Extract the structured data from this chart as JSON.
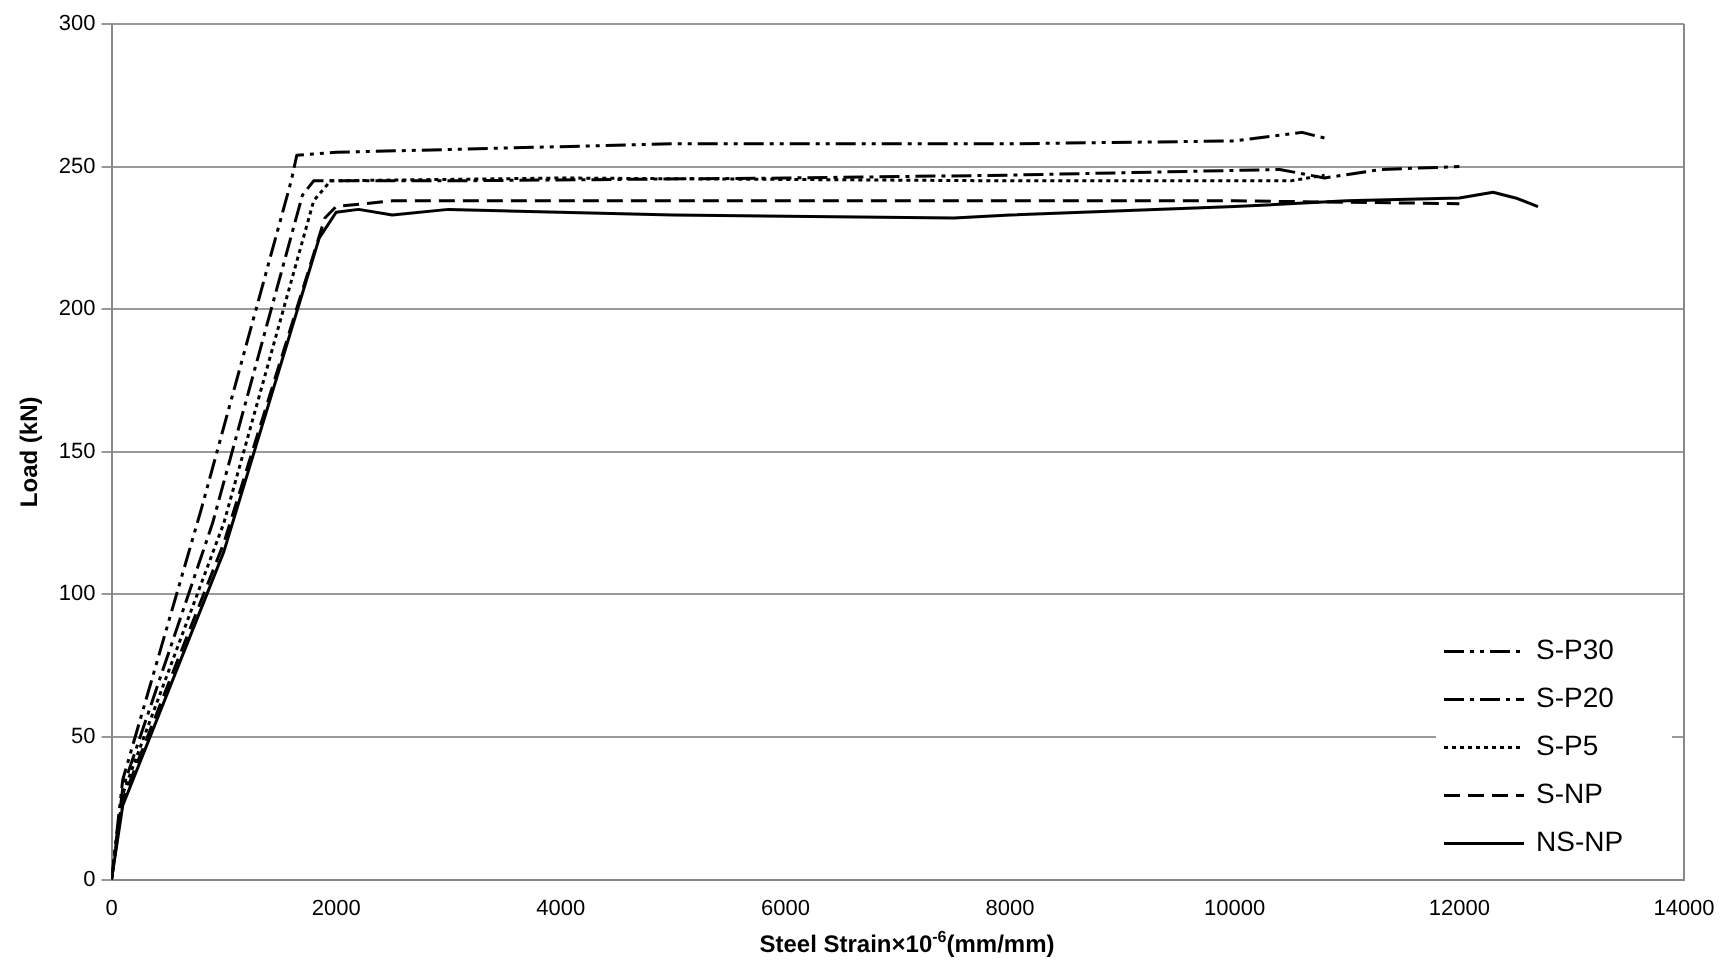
{
  "chart_data": {
    "type": "line",
    "xlabel": "Steel Strain×10$^{-6}$(mm/mm)",
    "ylabel": "Load (kN)",
    "xlim": [
      0,
      14000
    ],
    "xticks": [
      0,
      2000,
      4000,
      6000,
      8000,
      10000,
      12000,
      14000
    ],
    "ylim": [
      0,
      300
    ],
    "yticks": [
      0,
      50,
      100,
      150,
      200,
      250,
      300
    ],
    "grid": "y",
    "legend": "right",
    "marker": "none",
    "series": [
      {
        "name": "S-P30",
        "color": "#000000",
        "line_style": "dashdotdot",
        "x": [
          0,
          100,
          800,
          1600,
          1650,
          2000,
          3000,
          5000,
          8000,
          10000,
          10600,
          10800
        ],
        "values": [
          0,
          35,
          130,
          245,
          254,
          255,
          256,
          258,
          258,
          259,
          262,
          260
        ]
      },
      {
        "name": "S-P20",
        "color": "#000000",
        "line_style": "dashdot",
        "x": [
          0,
          100,
          900,
          1700,
          1800,
          3000,
          6000,
          8000,
          10400,
          10800,
          11300,
          12000
        ],
        "values": [
          0,
          32,
          125,
          240,
          245,
          245,
          246,
          247,
          249,
          246,
          249,
          250
        ]
      },
      {
        "name": "S-P5",
        "color": "#000000",
        "line_style": "dotted",
        "x": [
          0,
          100,
          1000,
          1800,
          1950,
          4000,
          8000,
          10500,
          10800
        ],
        "values": [
          0,
          30,
          125,
          238,
          245,
          246,
          245,
          245,
          247
        ]
      },
      {
        "name": "S-NP",
        "color": "#000000",
        "line_style": "dashed",
        "x": [
          0,
          100,
          1000,
          1900,
          2000,
          2500,
          6000,
          10000,
          12000
        ],
        "values": [
          0,
          28,
          118,
          232,
          236,
          238,
          238,
          238,
          237
        ]
      },
      {
        "name": "NS-NP",
        "color": "#000000",
        "line_style": "solid",
        "x": [
          0,
          100,
          1000,
          1850,
          2000,
          2200,
          2500,
          3000,
          5000,
          7500,
          8000,
          10000,
          11000,
          12000,
          12300,
          12500,
          12700
        ],
        "values": [
          0,
          26,
          115,
          225,
          234,
          235,
          233,
          235,
          233,
          232,
          233,
          236,
          238,
          239,
          241,
          239,
          236
        ]
      }
    ]
  }
}
